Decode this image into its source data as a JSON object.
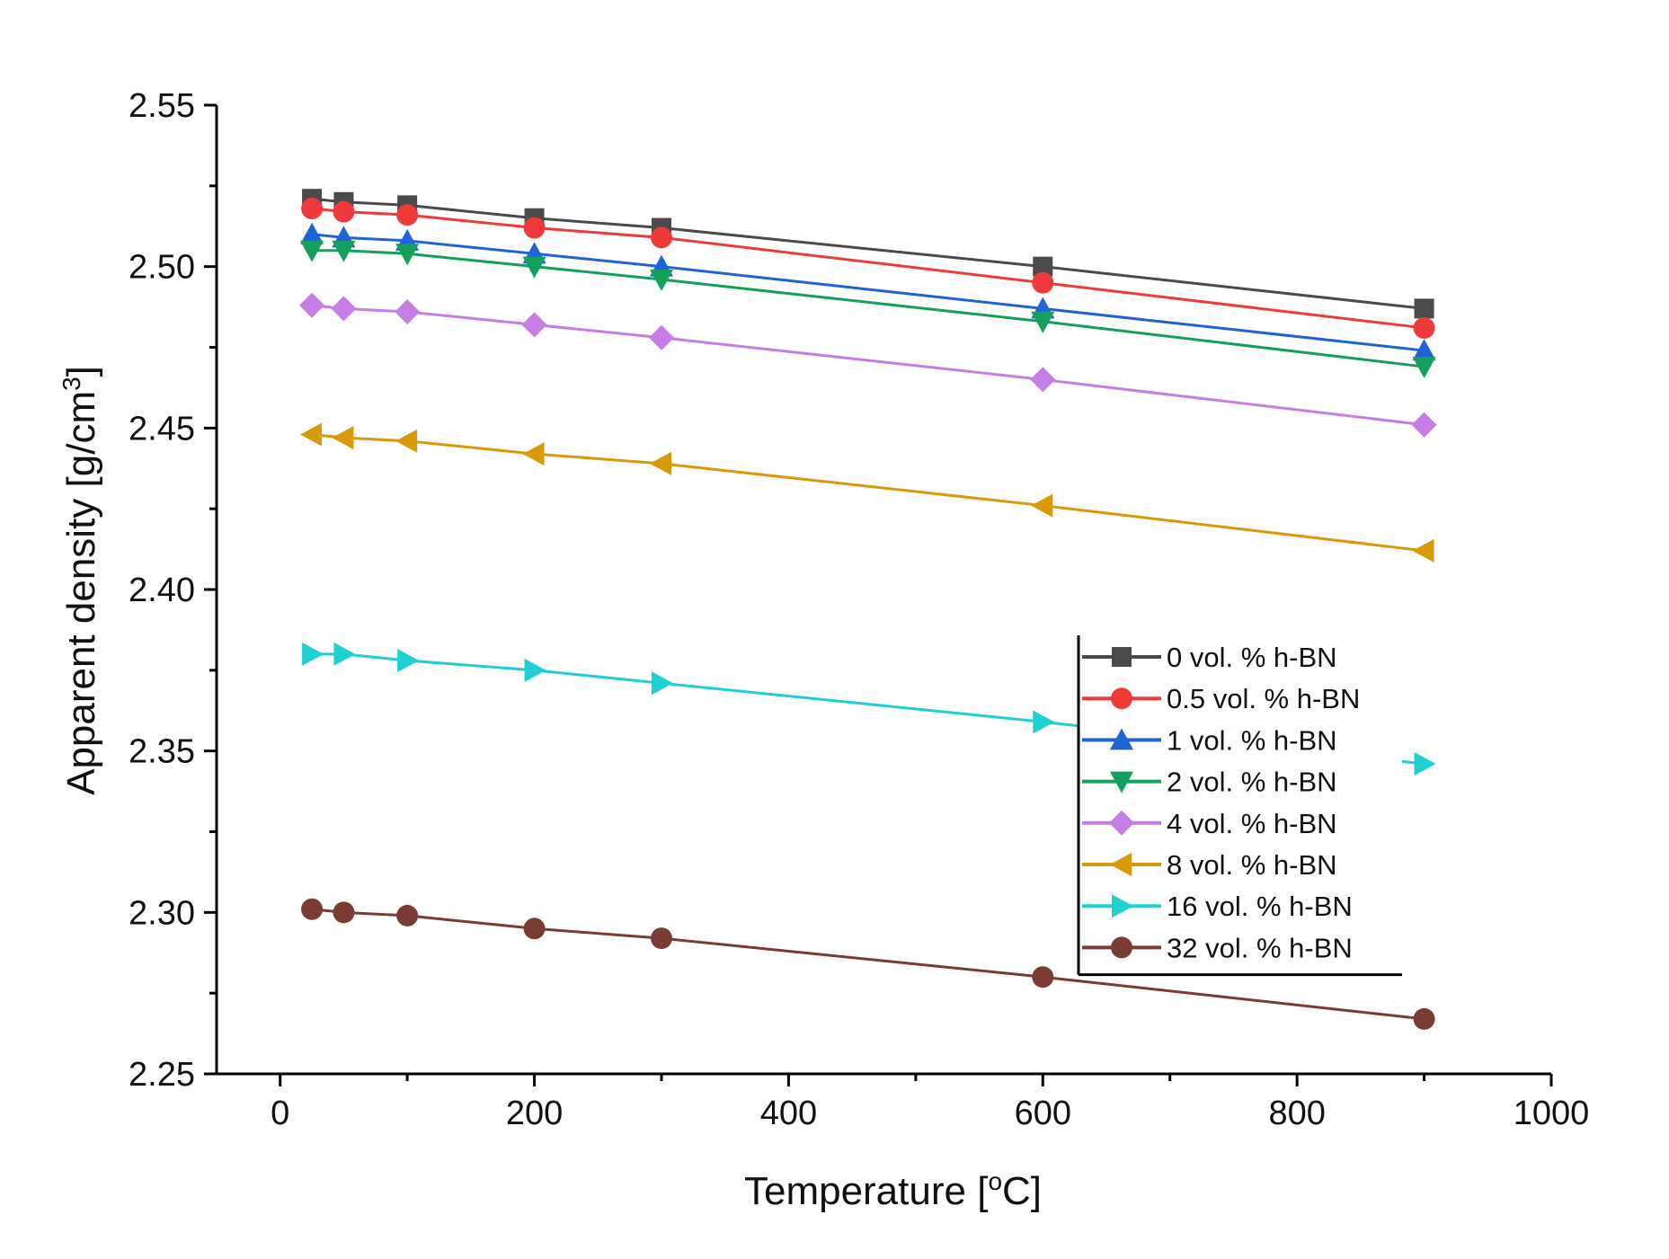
{
  "chart_data": {
    "type": "line",
    "title": "",
    "xlabel": "Temperature [",
    "xlabel_super": "o",
    "xlabel_tail": "C]",
    "ylabel": "Apparent density [g/cm",
    "ylabel_super": "3",
    "ylabel_tail": "]",
    "xlim": [
      -50,
      1000
    ],
    "ylim": [
      2.25,
      2.55
    ],
    "xticks": [
      0,
      200,
      400,
      600,
      800,
      1000
    ],
    "xtick_labels": [
      "0",
      "200",
      "400",
      "600",
      "800",
      "1000"
    ],
    "yticks": [
      2.25,
      2.3,
      2.35,
      2.4,
      2.45,
      2.5,
      2.55
    ],
    "ytick_labels": [
      "2.25",
      "2.30",
      "2.35",
      "2.40",
      "2.45",
      "2.50",
      "2.55"
    ],
    "x": [
      25,
      50,
      100,
      200,
      300,
      600,
      900
    ],
    "legend_position": "center-right",
    "series": [
      {
        "name": "0 vol. % h-BN",
        "color": "#4a4a4a",
        "marker": "square",
        "values": [
          2.521,
          2.52,
          2.519,
          2.515,
          2.512,
          2.5,
          2.487
        ]
      },
      {
        "name": "0.5 vol. % h-BN",
        "color": "#f03a3a",
        "marker": "circle",
        "values": [
          2.518,
          2.517,
          2.516,
          2.512,
          2.509,
          2.495,
          2.481
        ]
      },
      {
        "name": "1 vol. % h-BN",
        "color": "#1f63d8",
        "marker": "triangle-up",
        "values": [
          2.51,
          2.509,
          2.508,
          2.504,
          2.5,
          2.487,
          2.474
        ]
      },
      {
        "name": "2 vol. % h-BN",
        "color": "#13a05c",
        "marker": "triangle-down",
        "values": [
          2.505,
          2.505,
          2.504,
          2.5,
          2.496,
          2.483,
          2.469
        ]
      },
      {
        "name": "4 vol. % h-BN",
        "color": "#c77de6",
        "marker": "diamond",
        "values": [
          2.488,
          2.487,
          2.486,
          2.482,
          2.478,
          2.465,
          2.451
        ]
      },
      {
        "name": "8 vol. % h-BN",
        "color": "#d99a06",
        "marker": "triangle-left",
        "values": [
          2.448,
          2.447,
          2.446,
          2.442,
          2.439,
          2.426,
          2.412
        ]
      },
      {
        "name": "16 vol. % h-BN",
        "color": "#1ecfd4",
        "marker": "triangle-right",
        "values": [
          2.38,
          2.38,
          2.378,
          2.375,
          2.371,
          2.359,
          2.346
        ]
      },
      {
        "name": "32 vol. % h-BN",
        "color": "#7a3b33",
        "marker": "circle",
        "values": [
          2.301,
          2.3,
          2.299,
          2.295,
          2.292,
          2.28,
          2.267
        ]
      }
    ]
  }
}
